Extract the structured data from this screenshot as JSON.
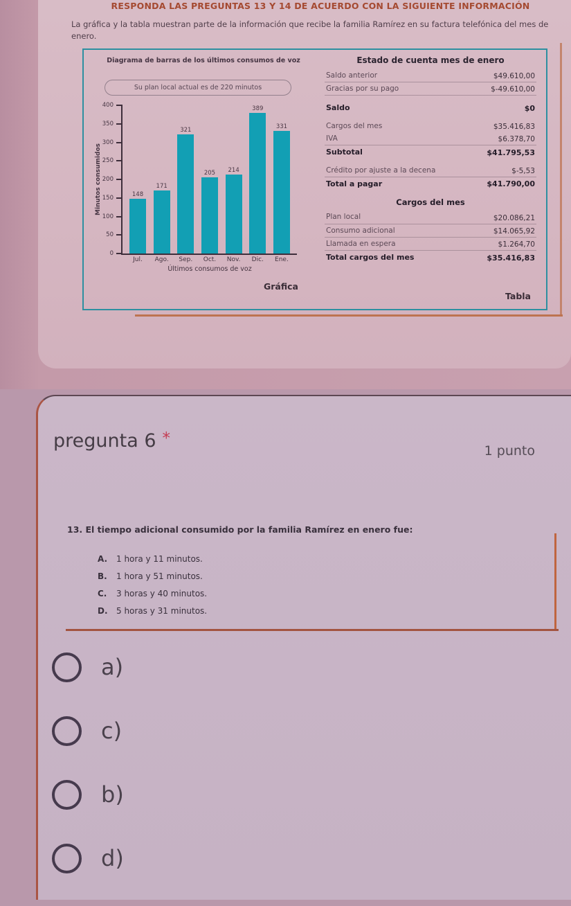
{
  "header": {
    "instruction": "RESPONDA LAS PREGUNTAS 13 Y 14 DE ACUERDO CON LA SIGUIENTE INFORMACIÓN",
    "intro": "La gráfica y la tabla muestran parte de la información que recibe la familia Ramírez en su factura telefónica del mes de enero."
  },
  "chart_data": {
    "type": "bar",
    "title": "Diagrama de barras de los últimos consumos de voz",
    "annotation": "Su plan local actual es de 220 minutos",
    "categories": [
      "Jul.",
      "Ago.",
      "Sep.",
      "Oct.",
      "Nov.",
      "Dic.",
      "Ene."
    ],
    "values": [
      148,
      171,
      321,
      205,
      214,
      389,
      331
    ],
    "xlabel": "Últimos consumos de voz",
    "ylabel": "Minutos consumidos",
    "ylim": [
      0,
      400
    ],
    "ytick_step": 50,
    "grid": false,
    "legend": "none",
    "bar_color": "#129fb4",
    "caption": "Gráfica"
  },
  "account_table": {
    "title": "Estado de cuenta mes de enero",
    "rows": [
      {
        "label": "Saldo anterior",
        "value": "$49.610,00",
        "bold": false,
        "underline": true,
        "gap": false
      },
      {
        "label": "Gracias por su pago",
        "value": "$-49.610,00",
        "bold": false,
        "underline": true,
        "gap": false
      },
      {
        "label": "Saldo",
        "value": "$0",
        "bold": true,
        "underline": false,
        "gap": true
      },
      {
        "label": "Cargos del mes",
        "value": "$35.416,83",
        "bold": false,
        "underline": false,
        "gap": true
      },
      {
        "label": "IVA",
        "value": "$6.378,70",
        "bold": false,
        "underline": true,
        "gap": false
      },
      {
        "label": "Subtotal",
        "value": "$41.795,53",
        "bold": true,
        "underline": false,
        "gap": false
      },
      {
        "label": "Crédito por ajuste a la decena",
        "value": "$-5,53",
        "bold": false,
        "underline": true,
        "gap": true
      },
      {
        "label": "Total a pagar",
        "value": "$41.790,00",
        "bold": true,
        "underline": false,
        "gap": false
      }
    ],
    "charges_header": "Cargos del mes",
    "charges_rows": [
      {
        "label": "Plan local",
        "value": "$20.086,21",
        "bold": false,
        "underline": true,
        "gap": false
      },
      {
        "label": "Consumo adicional",
        "value": "$14.065,92",
        "bold": false,
        "underline": true,
        "gap": false
      },
      {
        "label": "Llamada en espera",
        "value": "$1.264,70",
        "bold": false,
        "underline": true,
        "gap": false
      },
      {
        "label": "Total cargos del mes",
        "value": "$35.416,83",
        "bold": true,
        "underline": false,
        "gap": false
      }
    ],
    "caption": "Tabla"
  },
  "question": {
    "title": "pregunta 6",
    "required_marker": "*",
    "points": "1 punto",
    "prompt": "13. El tiempo adicional consumido por la familia Ramírez en enero fue:",
    "options": [
      {
        "letter": "A.",
        "text": "1 hora y 11 minutos."
      },
      {
        "letter": "B.",
        "text": "1 hora y 51 minutos."
      },
      {
        "letter": "C.",
        "text": "3 horas y 40 minutos."
      },
      {
        "letter": "D.",
        "text": "5 horas y 31 minutos."
      }
    ],
    "choices": [
      "a)",
      "c)",
      "b)",
      "d)"
    ]
  },
  "colors": {
    "instruction_red": "#a54a31",
    "bar_teal": "#129fb4",
    "card_border_teal": "#2d8fa0",
    "orange_line": "#bd7350"
  }
}
